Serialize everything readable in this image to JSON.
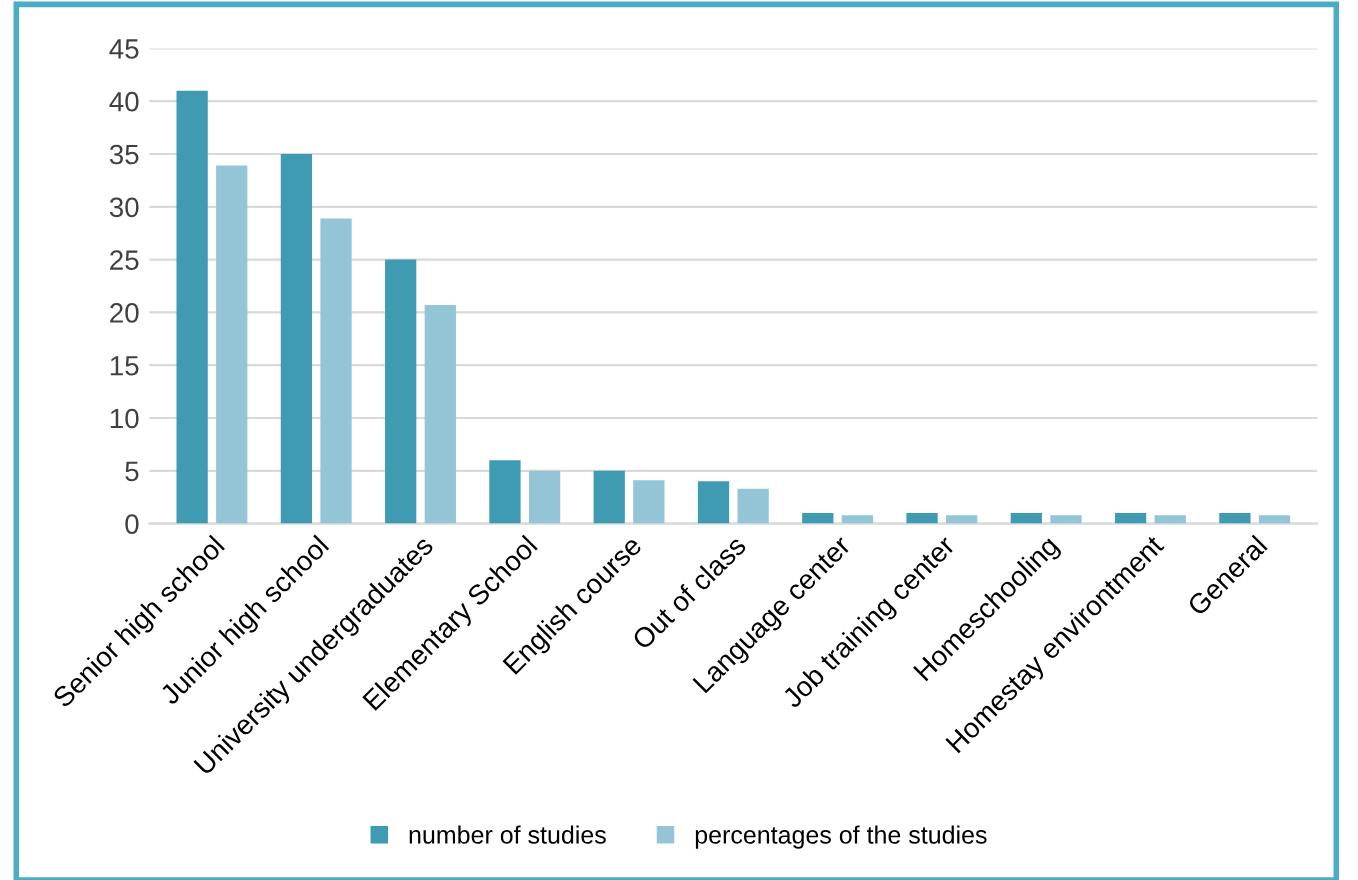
{
  "chart_data": {
    "type": "bar",
    "categories": [
      "Senior high school",
      "Junior high school",
      "University undergraduates",
      "Elementary School",
      "English course",
      "Out of class",
      "Language center",
      "Job training center",
      "Homeschooling",
      "Homestay environtment",
      "General"
    ],
    "series": [
      {
        "name": "number of studies",
        "color": "#3f9bb1",
        "values": [
          41,
          35,
          25,
          6,
          5,
          4,
          1,
          1,
          1,
          1,
          1
        ]
      },
      {
        "name": "percentages of the studies",
        "color": "#93c5d6",
        "values": [
          33.9,
          28.9,
          20.7,
          5.0,
          4.1,
          3.3,
          0.8,
          0.8,
          0.8,
          0.8,
          0.8
        ]
      }
    ],
    "ylim": [
      0,
      45
    ],
    "yticks": [
      0,
      5,
      10,
      15,
      20,
      25,
      30,
      35,
      40,
      45
    ],
    "grid": "y",
    "legend": "bottom"
  }
}
